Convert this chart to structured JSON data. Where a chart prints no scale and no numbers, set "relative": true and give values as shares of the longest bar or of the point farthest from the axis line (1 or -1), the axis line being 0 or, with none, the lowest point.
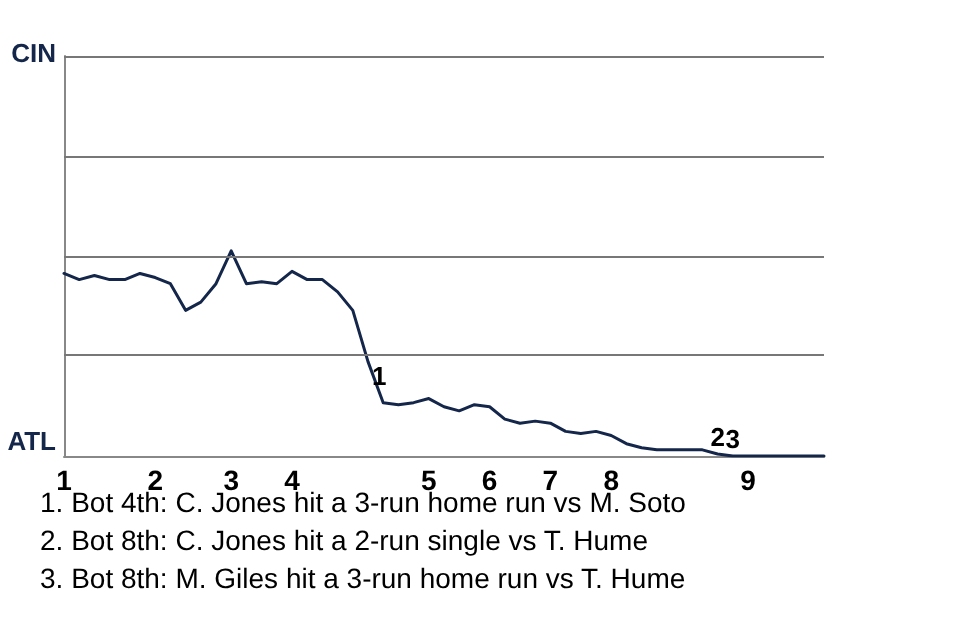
{
  "chart_data": {
    "type": "line",
    "color": "#14264a",
    "relative": true,
    "categories": [
      "1",
      null,
      null,
      null,
      null,
      null,
      "2",
      null,
      null,
      null,
      null,
      "3",
      null,
      null,
      null,
      "4",
      null,
      null,
      null,
      null,
      null,
      null,
      null,
      null,
      "5",
      null,
      null,
      null,
      "6",
      null,
      null,
      null,
      "7",
      null,
      null,
      null,
      "8",
      null,
      null,
      null,
      null,
      null,
      null,
      null,
      null,
      "9",
      null,
      null,
      null,
      null,
      null
    ],
    "values": [
      0.89,
      0.86,
      0.88,
      0.86,
      0.86,
      0.89,
      0.87,
      0.84,
      0.71,
      0.75,
      0.84,
      1,
      0.84,
      0.85,
      0.84,
      0.9,
      0.86,
      0.86,
      0.8,
      0.71,
      0.46,
      0.26,
      0.25,
      0.26,
      0.28,
      0.24,
      0.22,
      0.25,
      0.24,
      0.18,
      0.16,
      0.17,
      0.16,
      0.12,
      0.11,
      0.12,
      0.1,
      0.06,
      0.04,
      0.03,
      0.03,
      0.03,
      0.03,
      0.01,
      0,
      0,
      0,
      0,
      0,
      0,
      0
    ],
    "ref_lines": [
      {
        "axis": "y",
        "value": 0.49,
        "color": "#777777"
      },
      {
        "axis": "y",
        "value": 0.97,
        "color": "#777777"
      },
      {
        "axis": "y",
        "value": 1.46,
        "color": "#777777"
      },
      {
        "axis": "y",
        "value": 1.95,
        "color": "#777777"
      }
    ],
    "marker": "none",
    "line_style": "solid",
    "annotations": [
      {
        "text": "1",
        "y": 0.46
      },
      {
        "text": "2",
        "y": 0.01
      },
      {
        "text": "3",
        "y": 0
      },
      "CIN",
      "ATL",
      "1. Bot 4th: C. Jones hit a 3-run home run vs M. Soto",
      "2. Bot 8th: C. Jones hit a 2-run single vs T. Hume",
      "3. Bot 8th: M. Giles hit a 3-run home run vs T. Hume"
    ]
  }
}
